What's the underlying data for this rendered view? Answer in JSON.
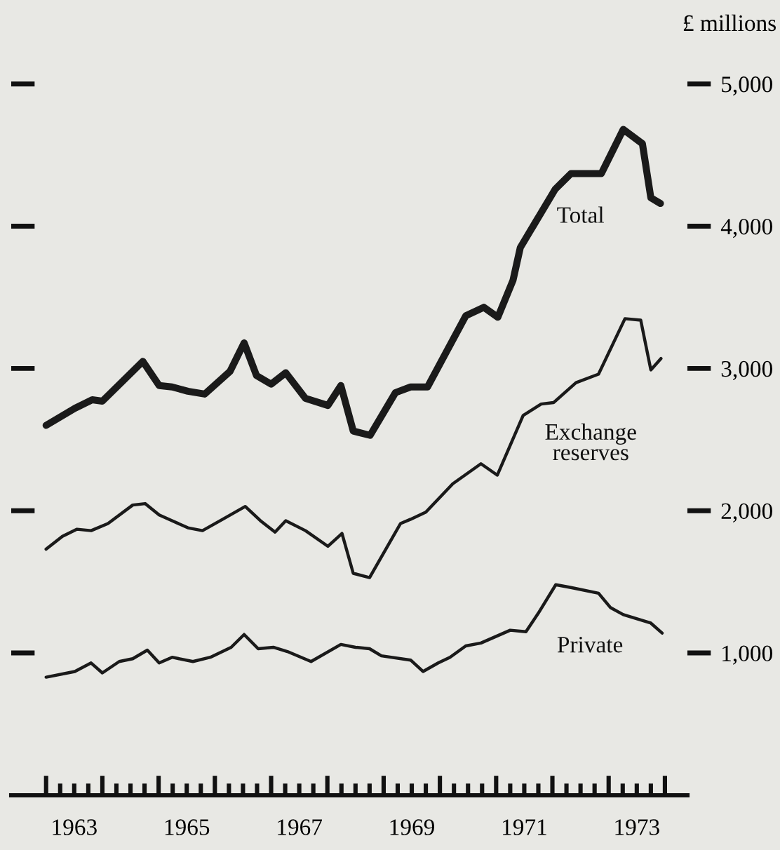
{
  "chart_data": {
    "type": "line",
    "ylabel": "£ millions",
    "series": [
      {
        "name": "Total",
        "color": "#1a1a1a",
        "x": [
          1963.0,
          1963.51,
          1963.82,
          1964.0,
          1964.72,
          1965.01,
          1965.24,
          1965.52,
          1965.82,
          1966.27,
          1966.52,
          1966.74,
          1967.0,
          1967.26,
          1967.61,
          1968.01,
          1968.24,
          1968.46,
          1968.76,
          1969.21,
          1969.48,
          1969.78,
          1970.46,
          1970.78,
          1971.03,
          1971.3,
          1971.43,
          1972.05,
          1972.33,
          1972.87,
          1973.26,
          1973.6,
          1973.75,
          1973.92
        ],
        "values": [
          2600,
          2720,
          2780,
          2770,
          3050,
          2880,
          2870,
          2840,
          2820,
          2980,
          3180,
          2950,
          2890,
          2970,
          2790,
          2740,
          2880,
          2560,
          2530,
          2830,
          2870,
          2870,
          3370,
          3430,
          3360,
          3620,
          3850,
          4260,
          4370,
          4370,
          4680,
          4580,
          4200,
          4160
        ]
      },
      {
        "name": "Exchange\nreserves",
        "color": "#1a1a1a",
        "x": [
          1963.0,
          1963.29,
          1963.55,
          1963.8,
          1964.1,
          1964.54,
          1964.76,
          1965.01,
          1965.24,
          1965.52,
          1965.78,
          1966.14,
          1966.54,
          1966.81,
          1967.07,
          1967.26,
          1967.61,
          1968.01,
          1968.26,
          1968.46,
          1968.75,
          1969.3,
          1969.48,
          1969.75,
          1970.23,
          1970.73,
          1971.02,
          1971.48,
          1971.8,
          1972.02,
          1972.42,
          1972.82,
          1973.29,
          1973.57,
          1973.75,
          1973.93
        ],
        "values": [
          1730,
          1820,
          1870,
          1860,
          1910,
          2040,
          2050,
          1970,
          1930,
          1880,
          1860,
          1940,
          2030,
          1930,
          1850,
          1930,
          1860,
          1750,
          1840,
          1560,
          1530,
          1910,
          1940,
          1990,
          2190,
          2330,
          2250,
          2670,
          2750,
          2760,
          2900,
          2960,
          3350,
          3340,
          2990,
          3070
        ]
      },
      {
        "name": "Private",
        "color": "#1a1a1a",
        "x": [
          1963.0,
          1963.51,
          1963.8,
          1964.0,
          1964.3,
          1964.54,
          1964.8,
          1965.01,
          1965.24,
          1965.61,
          1965.92,
          1966.29,
          1966.52,
          1966.77,
          1967.04,
          1967.29,
          1967.71,
          1968.24,
          1968.5,
          1968.75,
          1968.96,
          1969.48,
          1969.7,
          1969.97,
          1970.18,
          1970.46,
          1970.73,
          1971.25,
          1971.53,
          1971.75,
          1972.06,
          1972.33,
          1972.82,
          1973.03,
          1973.26,
          1973.75,
          1973.95
        ],
        "values": [
          830,
          870,
          930,
          860,
          940,
          960,
          1020,
          930,
          970,
          940,
          970,
          1040,
          1130,
          1030,
          1040,
          1010,
          940,
          1060,
          1040,
          1030,
          980,
          950,
          870,
          930,
          970,
          1050,
          1070,
          1160,
          1150,
          1280,
          1480,
          1460,
          1420,
          1320,
          1270,
          1210,
          1140
        ]
      }
    ],
    "xlim": [
      1962.38,
      1974.4
    ],
    "xticks": [
      {
        "value": 1963,
        "label": null
      },
      {
        "value": 1963.25,
        "label": null
      },
      {
        "value": 1963.5,
        "label": "1963"
      },
      {
        "value": 1963.75,
        "label": null
      },
      {
        "value": 1964,
        "label": null
      },
      {
        "value": 1964.25,
        "label": null
      },
      {
        "value": 1964.5,
        "label": null
      },
      {
        "value": 1964.75,
        "label": null
      },
      {
        "value": 1965,
        "label": null
      },
      {
        "value": 1965.25,
        "label": null
      },
      {
        "value": 1965.5,
        "label": "1965"
      },
      {
        "value": 1965.75,
        "label": null
      },
      {
        "value": 1966,
        "label": null
      },
      {
        "value": 1966.25,
        "label": null
      },
      {
        "value": 1966.5,
        "label": null
      },
      {
        "value": 1966.75,
        "label": null
      },
      {
        "value": 1967,
        "label": null
      },
      {
        "value": 1967.25,
        "label": null
      },
      {
        "value": 1967.5,
        "label": "1967"
      },
      {
        "value": 1967.75,
        "label": null
      },
      {
        "value": 1968,
        "label": null
      },
      {
        "value": 1968.25,
        "label": null
      },
      {
        "value": 1968.5,
        "label": null
      },
      {
        "value": 1968.75,
        "label": null
      },
      {
        "value": 1969,
        "label": null
      },
      {
        "value": 1969.25,
        "label": null
      },
      {
        "value": 1969.5,
        "label": "1969"
      },
      {
        "value": 1969.75,
        "label": null
      },
      {
        "value": 1970,
        "label": null
      },
      {
        "value": 1970.25,
        "label": null
      },
      {
        "value": 1970.5,
        "label": null
      },
      {
        "value": 1970.75,
        "label": null
      },
      {
        "value": 1971,
        "label": null
      },
      {
        "value": 1971.25,
        "label": null
      },
      {
        "value": 1971.5,
        "label": "1971"
      },
      {
        "value": 1971.75,
        "label": null
      },
      {
        "value": 1972,
        "label": null
      },
      {
        "value": 1972.25,
        "label": null
      },
      {
        "value": 1972.5,
        "label": null
      },
      {
        "value": 1972.75,
        "label": null
      },
      {
        "value": 1973,
        "label": null
      },
      {
        "value": 1973.25,
        "label": null
      },
      {
        "value": 1973.5,
        "label": "1973"
      },
      {
        "value": 1973.75,
        "label": null
      },
      {
        "value": 1974,
        "label": null
      }
    ],
    "ylim": [
      0,
      5590
    ],
    "yticks": [
      {
        "value": 1000,
        "label": "1,000"
      },
      {
        "value": 2000,
        "label": "2,000"
      },
      {
        "value": 3000,
        "label": "3,000"
      },
      {
        "value": 4000,
        "label": "4,000"
      },
      {
        "value": 5000,
        "label": "5,000"
      }
    ],
    "grid": false,
    "marker": "none",
    "line_style": "solid"
  }
}
